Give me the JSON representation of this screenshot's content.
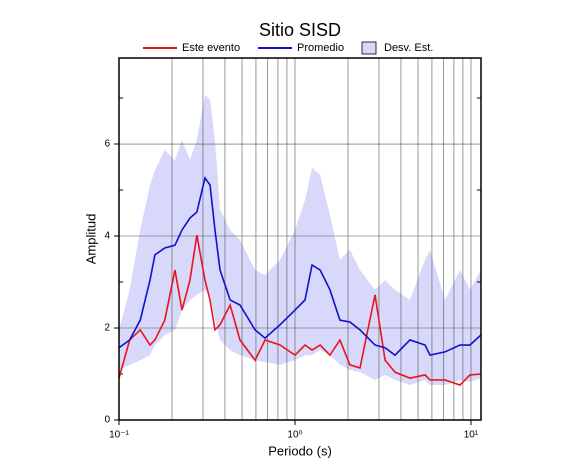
{
  "chart_data": {
    "type": "line",
    "title": "Sitio SISD",
    "x_label": "Periodo (s)",
    "y_label": "Amplitud",
    "x_scale": "log",
    "xlim": [
      0.1,
      11.4
    ],
    "ylim": [
      0,
      7.87
    ],
    "xticks": [
      {
        "value": 0.1,
        "label": "10⁻¹"
      },
      {
        "value": 1,
        "label": "10⁰"
      },
      {
        "value": 10,
        "label": "10¹"
      }
    ],
    "x_minor_ticks": [
      0.2,
      0.3,
      0.4,
      0.5,
      0.6,
      0.7,
      0.8,
      0.9,
      2,
      3,
      4,
      5,
      6,
      7,
      8,
      9
    ],
    "yticks": [
      0,
      2,
      4,
      6
    ],
    "y_minor_ticks": [
      1,
      3,
      5,
      7
    ],
    "grid": true,
    "legend": "top",
    "x": [
      0.1,
      0.115,
      0.132,
      0.15,
      0.16,
      0.182,
      0.208,
      0.228,
      0.253,
      0.277,
      0.308,
      0.329,
      0.351,
      0.375,
      0.428,
      0.487,
      0.593,
      0.676,
      0.822,
      1.0,
      1.14,
      1.25,
      1.39,
      1.58,
      1.8,
      2.05,
      2.34,
      2.85,
      3.25,
      3.7,
      4.5,
      5.48,
      5.85,
      7.11,
      8.66,
      9.87,
      11.4
    ],
    "series": [
      {
        "name": "Este evento",
        "color": "#e8141c",
        "values": [
          0.91,
          1.74,
          1.96,
          1.63,
          1.74,
          2.17,
          3.26,
          2.39,
          3.04,
          4.02,
          3.04,
          2.61,
          1.96,
          2.07,
          2.5,
          1.74,
          1.3,
          1.74,
          1.63,
          1.41,
          1.63,
          1.52,
          1.63,
          1.41,
          1.74,
          1.2,
          1.13,
          2.72,
          1.3,
          1.04,
          0.91,
          0.98,
          0.87,
          0.87,
          0.76,
          0.98,
          1.0
        ]
      },
      {
        "name": "Promedio",
        "color": "#1010d0",
        "values": [
          1.57,
          1.74,
          2.17,
          3.04,
          3.59,
          3.74,
          3.8,
          4.13,
          4.39,
          4.52,
          5.26,
          5.11,
          4.13,
          3.26,
          2.61,
          2.5,
          1.96,
          1.78,
          2.07,
          2.39,
          2.61,
          3.37,
          3.26,
          2.83,
          2.17,
          2.13,
          1.96,
          1.63,
          1.57,
          1.41,
          1.74,
          1.63,
          1.41,
          1.48,
          1.63,
          1.63,
          1.85
        ]
      },
      {
        "name": "Desv. Est.",
        "color": "#d8d8fa",
        "upper": [
          1.96,
          2.83,
          4.13,
          5.11,
          5.43,
          5.87,
          5.65,
          6.09,
          5.65,
          6.09,
          7.07,
          6.96,
          6.09,
          4.57,
          4.13,
          3.91,
          3.26,
          3.15,
          3.48,
          4.13,
          4.78,
          5.48,
          5.33,
          4.46,
          3.48,
          3.7,
          3.26,
          2.83,
          3.04,
          2.83,
          2.61,
          3.48,
          3.7,
          2.61,
          3.26,
          2.83,
          3.26
        ],
        "lower": [
          1.09,
          1.2,
          1.3,
          1.41,
          1.63,
          1.85,
          1.96,
          2.39,
          2.61,
          2.72,
          2.83,
          2.72,
          2.17,
          1.74,
          1.52,
          1.41,
          1.3,
          1.26,
          1.2,
          1.3,
          1.41,
          1.41,
          1.52,
          1.41,
          1.2,
          1.09,
          1.04,
          0.87,
          0.98,
          0.87,
          0.76,
          0.87,
          0.76,
          0.76,
          0.87,
          0.83,
          0.91
        ]
      }
    ]
  }
}
